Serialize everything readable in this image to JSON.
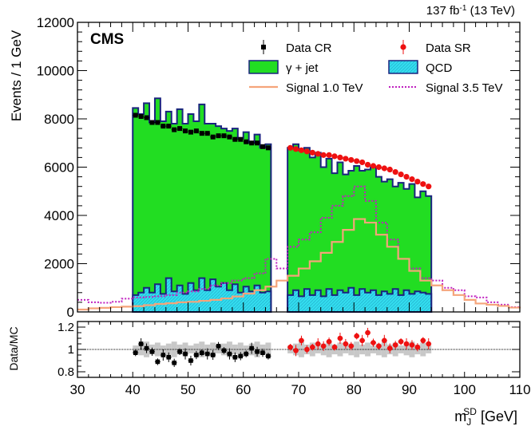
{
  "chart_data": [
    {
      "type": "histogram",
      "lumi_label": "137 fb",
      "lumi_sup": "-1",
      "lumi_energy": " (13 TeV)",
      "experiment": "CMS",
      "ylabel": "Events / 1 GeV",
      "xlim": [
        30,
        110
      ],
      "ylim": [
        0,
        12000
      ],
      "yticks": [
        "0",
        "2000",
        "4000",
        "6000",
        "8000",
        "10000",
        "12000"
      ],
      "legend": [
        {
          "key": "data_cr",
          "label": "Data CR"
        },
        {
          "key": "data_sr",
          "label": "Data SR"
        },
        {
          "key": "gjet",
          "label": "γ + jet"
        },
        {
          "key": "qcd",
          "label": "QCD"
        },
        {
          "key": "sig1",
          "label": "Signal 1.0 TeV"
        },
        {
          "key": "sig35",
          "label": "Signal 3.5 TeV"
        }
      ],
      "colors": {
        "gjet_fill": "#22dd22",
        "gjet_line": "#1a237e",
        "qcd_fill": "#33ddee",
        "qcd_line": "#1a237e",
        "sig1": "#f5a47a",
        "sig35": "#c020c0",
        "data_cr": "#000000",
        "data_sr": "#ee1111"
      },
      "bin_edges_cr": [
        40,
        41,
        42,
        43,
        44,
        45,
        46,
        47,
        48,
        49,
        50,
        51,
        52,
        53,
        54,
        55,
        56,
        57,
        58,
        59,
        60,
        61,
        62,
        63,
        64,
        65
      ],
      "bin_edges_sr": [
        68,
        69,
        70,
        71,
        72,
        73,
        74,
        75,
        76,
        77,
        78,
        79,
        80,
        81,
        82,
        83,
        84,
        85,
        86,
        87,
        88,
        89,
        90,
        91,
        92,
        93,
        94
      ],
      "total_mc_cr": [
        8450,
        8200,
        8650,
        7850,
        8850,
        7900,
        8300,
        7800,
        8400,
        7800,
        8200,
        7900,
        8600,
        7800,
        7800,
        7700,
        7600,
        7500,
        7600,
        7200,
        7450,
        7000,
        7350,
        6800,
        6950
      ],
      "total_mc_sr": [
        6800,
        6950,
        6700,
        6800,
        6400,
        6600,
        6000,
        6350,
        5750,
        6200,
        5700,
        5850,
        6050,
        5850,
        5900,
        6000,
        5600,
        5400,
        5500,
        5200,
        5350,
        5100,
        5300,
        4750,
        5000,
        4800
      ],
      "qcd_cr": [
        700,
        800,
        1000,
        800,
        1150,
        750,
        1400,
        850,
        1100,
        750,
        1200,
        900,
        1400,
        900,
        1350,
        1050,
        1200,
        900,
        1150,
        800,
        1050,
        850,
        1100,
        800,
        850
      ],
      "qcd_sr": [
        700,
        900,
        650,
        950,
        700,
        900,
        650,
        950,
        700,
        900,
        800,
        1000,
        700,
        950,
        800,
        900,
        700,
        850,
        750,
        950,
        700,
        900,
        750,
        850,
        800,
        750
      ],
      "signal_1tev": {
        "x": [
          30,
          32,
          34,
          36,
          38,
          40,
          42,
          44,
          46,
          48,
          50,
          52,
          54,
          56,
          58,
          60,
          62,
          64,
          66,
          68,
          70,
          72,
          74,
          76,
          78,
          80,
          82,
          84,
          86,
          88,
          90,
          92,
          94,
          96,
          98,
          100,
          102,
          104,
          106,
          108,
          110
        ],
        "y": [
          100,
          150,
          170,
          200,
          220,
          240,
          280,
          330,
          360,
          400,
          420,
          460,
          500,
          560,
          640,
          760,
          900,
          1050,
          1300,
          1500,
          1800,
          2100,
          2450,
          2900,
          3400,
          3850,
          3700,
          3200,
          2700,
          2200,
          1700,
          1300,
          1100,
          900,
          700,
          500,
          350,
          300,
          250,
          180,
          150
        ]
      },
      "signal_3_5tev": {
        "x": [
          30,
          32,
          34,
          36,
          38,
          40,
          42,
          44,
          46,
          48,
          50,
          52,
          54,
          56,
          58,
          60,
          62,
          64,
          66,
          68,
          70,
          72,
          74,
          76,
          78,
          80,
          82,
          84,
          86,
          88,
          90,
          92,
          94,
          96,
          98,
          100,
          102,
          104,
          106,
          108,
          110
        ],
        "y": [
          500,
          400,
          380,
          420,
          550,
          600,
          620,
          650,
          700,
          800,
          850,
          950,
          1100,
          1200,
          1300,
          1400,
          1600,
          2200,
          1800,
          2700,
          3000,
          3300,
          3900,
          4400,
          4800,
          5200,
          4600,
          3700,
          3000,
          2200,
          1800,
          1400,
          1300,
          1000,
          900,
          650,
          600,
          400,
          300,
          200,
          180
        ]
      },
      "data_cr": {
        "x": [
          40.5,
          41.5,
          42.5,
          43.5,
          44.5,
          45.5,
          46.5,
          47.5,
          48.5,
          49.5,
          50.5,
          51.5,
          52.5,
          53.5,
          54.5,
          55.5,
          56.5,
          57.5,
          58.5,
          59.5,
          60.5,
          61.5,
          62.5,
          63.5,
          64.5
        ],
        "y": [
          8150,
          8100,
          8050,
          7850,
          7850,
          7700,
          7700,
          7550,
          7600,
          7500,
          7450,
          7500,
          7400,
          7400,
          7250,
          7300,
          7300,
          7250,
          7150,
          7150,
          7050,
          7000,
          7000,
          6850,
          6800
        ]
      },
      "data_sr": {
        "x": [
          68.5,
          69.5,
          70.5,
          71.5,
          72.5,
          73.5,
          74.5,
          75.5,
          76.5,
          77.5,
          78.5,
          79.5,
          80.5,
          81.5,
          82.5,
          83.5,
          84.5,
          85.5,
          86.5,
          87.5,
          88.5,
          89.5,
          90.5,
          91.5,
          92.5,
          93.5
        ],
        "y": [
          6800,
          6750,
          6700,
          6650,
          6600,
          6550,
          6500,
          6500,
          6450,
          6400,
          6350,
          6300,
          6250,
          6200,
          6100,
          6050,
          6000,
          5950,
          5900,
          5800,
          5700,
          5600,
          5500,
          5400,
          5300,
          5200
        ]
      },
      "ratio": {
        "ylabel": "Data/MC",
        "yticks": [
          "0.8",
          "1",
          "1.2"
        ],
        "ylim": [
          0.75,
          1.25
        ],
        "xlabel": "m",
        "xlabel_sub": "J",
        "xlabel_sup": "SD",
        "xlabel_unit": " [GeV]",
        "xticks": [
          "30",
          "40",
          "50",
          "60",
          "70",
          "80",
          "90",
          "100",
          "110"
        ],
        "x_cr": [
          40.5,
          41.5,
          42.5,
          43.5,
          44.5,
          45.5,
          46.5,
          47.5,
          48.5,
          49.5,
          50.5,
          51.5,
          52.5,
          53.5,
          54.5,
          55.5,
          56.5,
          57.5,
          58.5,
          59.5,
          60.5,
          61.5,
          62.5,
          63.5,
          64.5
        ],
        "y_cr": [
          0.97,
          1.05,
          1.01,
          0.98,
          0.89,
          0.95,
          0.93,
          0.88,
          0.98,
          0.96,
          0.9,
          0.95,
          0.97,
          0.96,
          0.95,
          1.03,
          0.99,
          0.96,
          0.93,
          0.94,
          0.96,
          1.01,
          0.98,
          0.97,
          0.94
        ],
        "x_sr": [
          68.5,
          69.5,
          70.5,
          71.5,
          72.5,
          73.5,
          74.5,
          75.5,
          76.5,
          77.5,
          78.5,
          79.5,
          80.5,
          81.5,
          82.5,
          83.5,
          84.5,
          85.5,
          86.5,
          87.5,
          88.5,
          89.5,
          90.5,
          91.5,
          92.5,
          93.5
        ],
        "y_sr": [
          1.02,
          0.99,
          1.08,
          1.0,
          1.02,
          1.05,
          1.03,
          1.07,
          1.02,
          1.1,
          1.05,
          1.03,
          1.12,
          1.08,
          1.15,
          1.06,
          1.03,
          1.08,
          1.01,
          1.04,
          1.07,
          1.05,
          1.04,
          1.02,
          1.08,
          1.05
        ]
      }
    }
  ]
}
